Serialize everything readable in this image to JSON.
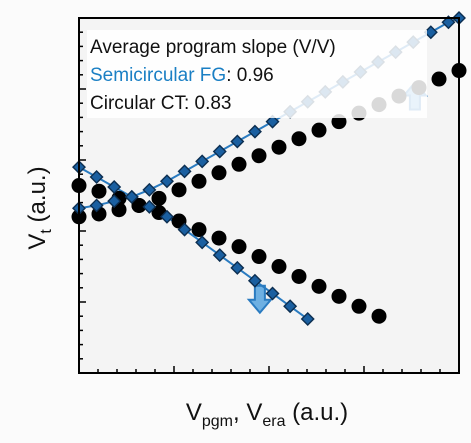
{
  "chart_data": {
    "type": "scatter",
    "title": "",
    "xlabel": {
      "main": "V",
      "sub1": "pgm",
      "sep": ", ",
      "main2": "V",
      "sub2": "era",
      "unit": " (a.u.)"
    },
    "ylabel": {
      "main": "V",
      "sub": "t",
      "unit": " (a.u.)"
    },
    "xlim": [
      0,
      100
    ],
    "ylim": [
      0,
      100
    ],
    "grid": false,
    "legend_position": "top-left",
    "annotations": {
      "header": "Average program slope (V/V)",
      "fg_label": "Semicircular FG",
      "fg_value": ": 0.96",
      "ct_label": "Circular CT",
      "ct_value": ": 0.83"
    },
    "arrows": [
      {
        "name": "program-arrow",
        "x": 88.4,
        "y": 77.6,
        "direction": "up"
      },
      {
        "name": "erase-arrow",
        "x": 47.6,
        "y": 21.2,
        "direction": "down"
      }
    ],
    "series": [
      {
        "name": "Semicircular FG",
        "group": "program",
        "marker": "diamond",
        "color": "#1a5fa0",
        "x": [
          0,
          4.63,
          9.26,
          13.89,
          18.52,
          23.15,
          27.78,
          32.41,
          37.04,
          41.67,
          46.3,
          50.93,
          55.56,
          60.19,
          64.81,
          69.44,
          74.07,
          78.7,
          83.33,
          87.96,
          92.59,
          97.22,
          101.85
        ],
        "y": [
          46.4,
          47.2,
          48.4,
          49.6,
          51.6,
          54.0,
          56.8,
          59.6,
          62.4,
          65.2,
          68.0,
          70.8,
          73.6,
          76.4,
          79.2,
          82.0,
          84.8,
          87.6,
          90.4,
          93.2,
          96.0,
          98.8,
          101.6
        ]
      },
      {
        "name": "Circular CT",
        "group": "program",
        "marker": "circle",
        "color": "#000000",
        "x": [
          0,
          5.26,
          10.53,
          15.79,
          21.05,
          26.32,
          31.58,
          36.84,
          42.11,
          47.37,
          52.63,
          57.89,
          63.16,
          68.42,
          73.68,
          78.95,
          84.21,
          89.47,
          94.74,
          100.0
        ],
        "y": [
          44.0,
          44.8,
          46.0,
          47.2,
          49.2,
          51.6,
          54.0,
          56.4,
          58.8,
          61.2,
          63.6,
          66.0,
          68.4,
          70.8,
          73.2,
          75.6,
          78.0,
          80.4,
          82.8,
          85.2
        ]
      },
      {
        "name": "Semicircular FG",
        "group": "erase",
        "marker": "diamond",
        "color": "#1a5fa0",
        "x": [
          0,
          4.63,
          9.26,
          13.89,
          18.52,
          23.15,
          27.78,
          32.41,
          37.04,
          41.67,
          46.3,
          50.93,
          55.56,
          60.19
        ],
        "y": [
          58.0,
          55.2,
          52.4,
          49.6,
          46.8,
          44.0,
          40.4,
          36.8,
          33.2,
          29.6,
          26.0,
          22.4,
          18.8,
          15.2
        ]
      },
      {
        "name": "Circular CT",
        "group": "erase",
        "marker": "circle",
        "color": "#000000",
        "x": [
          0,
          5.26,
          10.53,
          15.79,
          21.05,
          26.32,
          31.58,
          36.84,
          42.11,
          47.37,
          52.63,
          57.89,
          63.16,
          68.42,
          73.68,
          78.95
        ],
        "y": [
          52.8,
          51.2,
          49.2,
          47.2,
          45.2,
          42.8,
          40.4,
          38.0,
          35.6,
          32.8,
          30.0,
          27.2,
          24.4,
          21.6,
          18.8,
          16.0
        ]
      }
    ]
  }
}
